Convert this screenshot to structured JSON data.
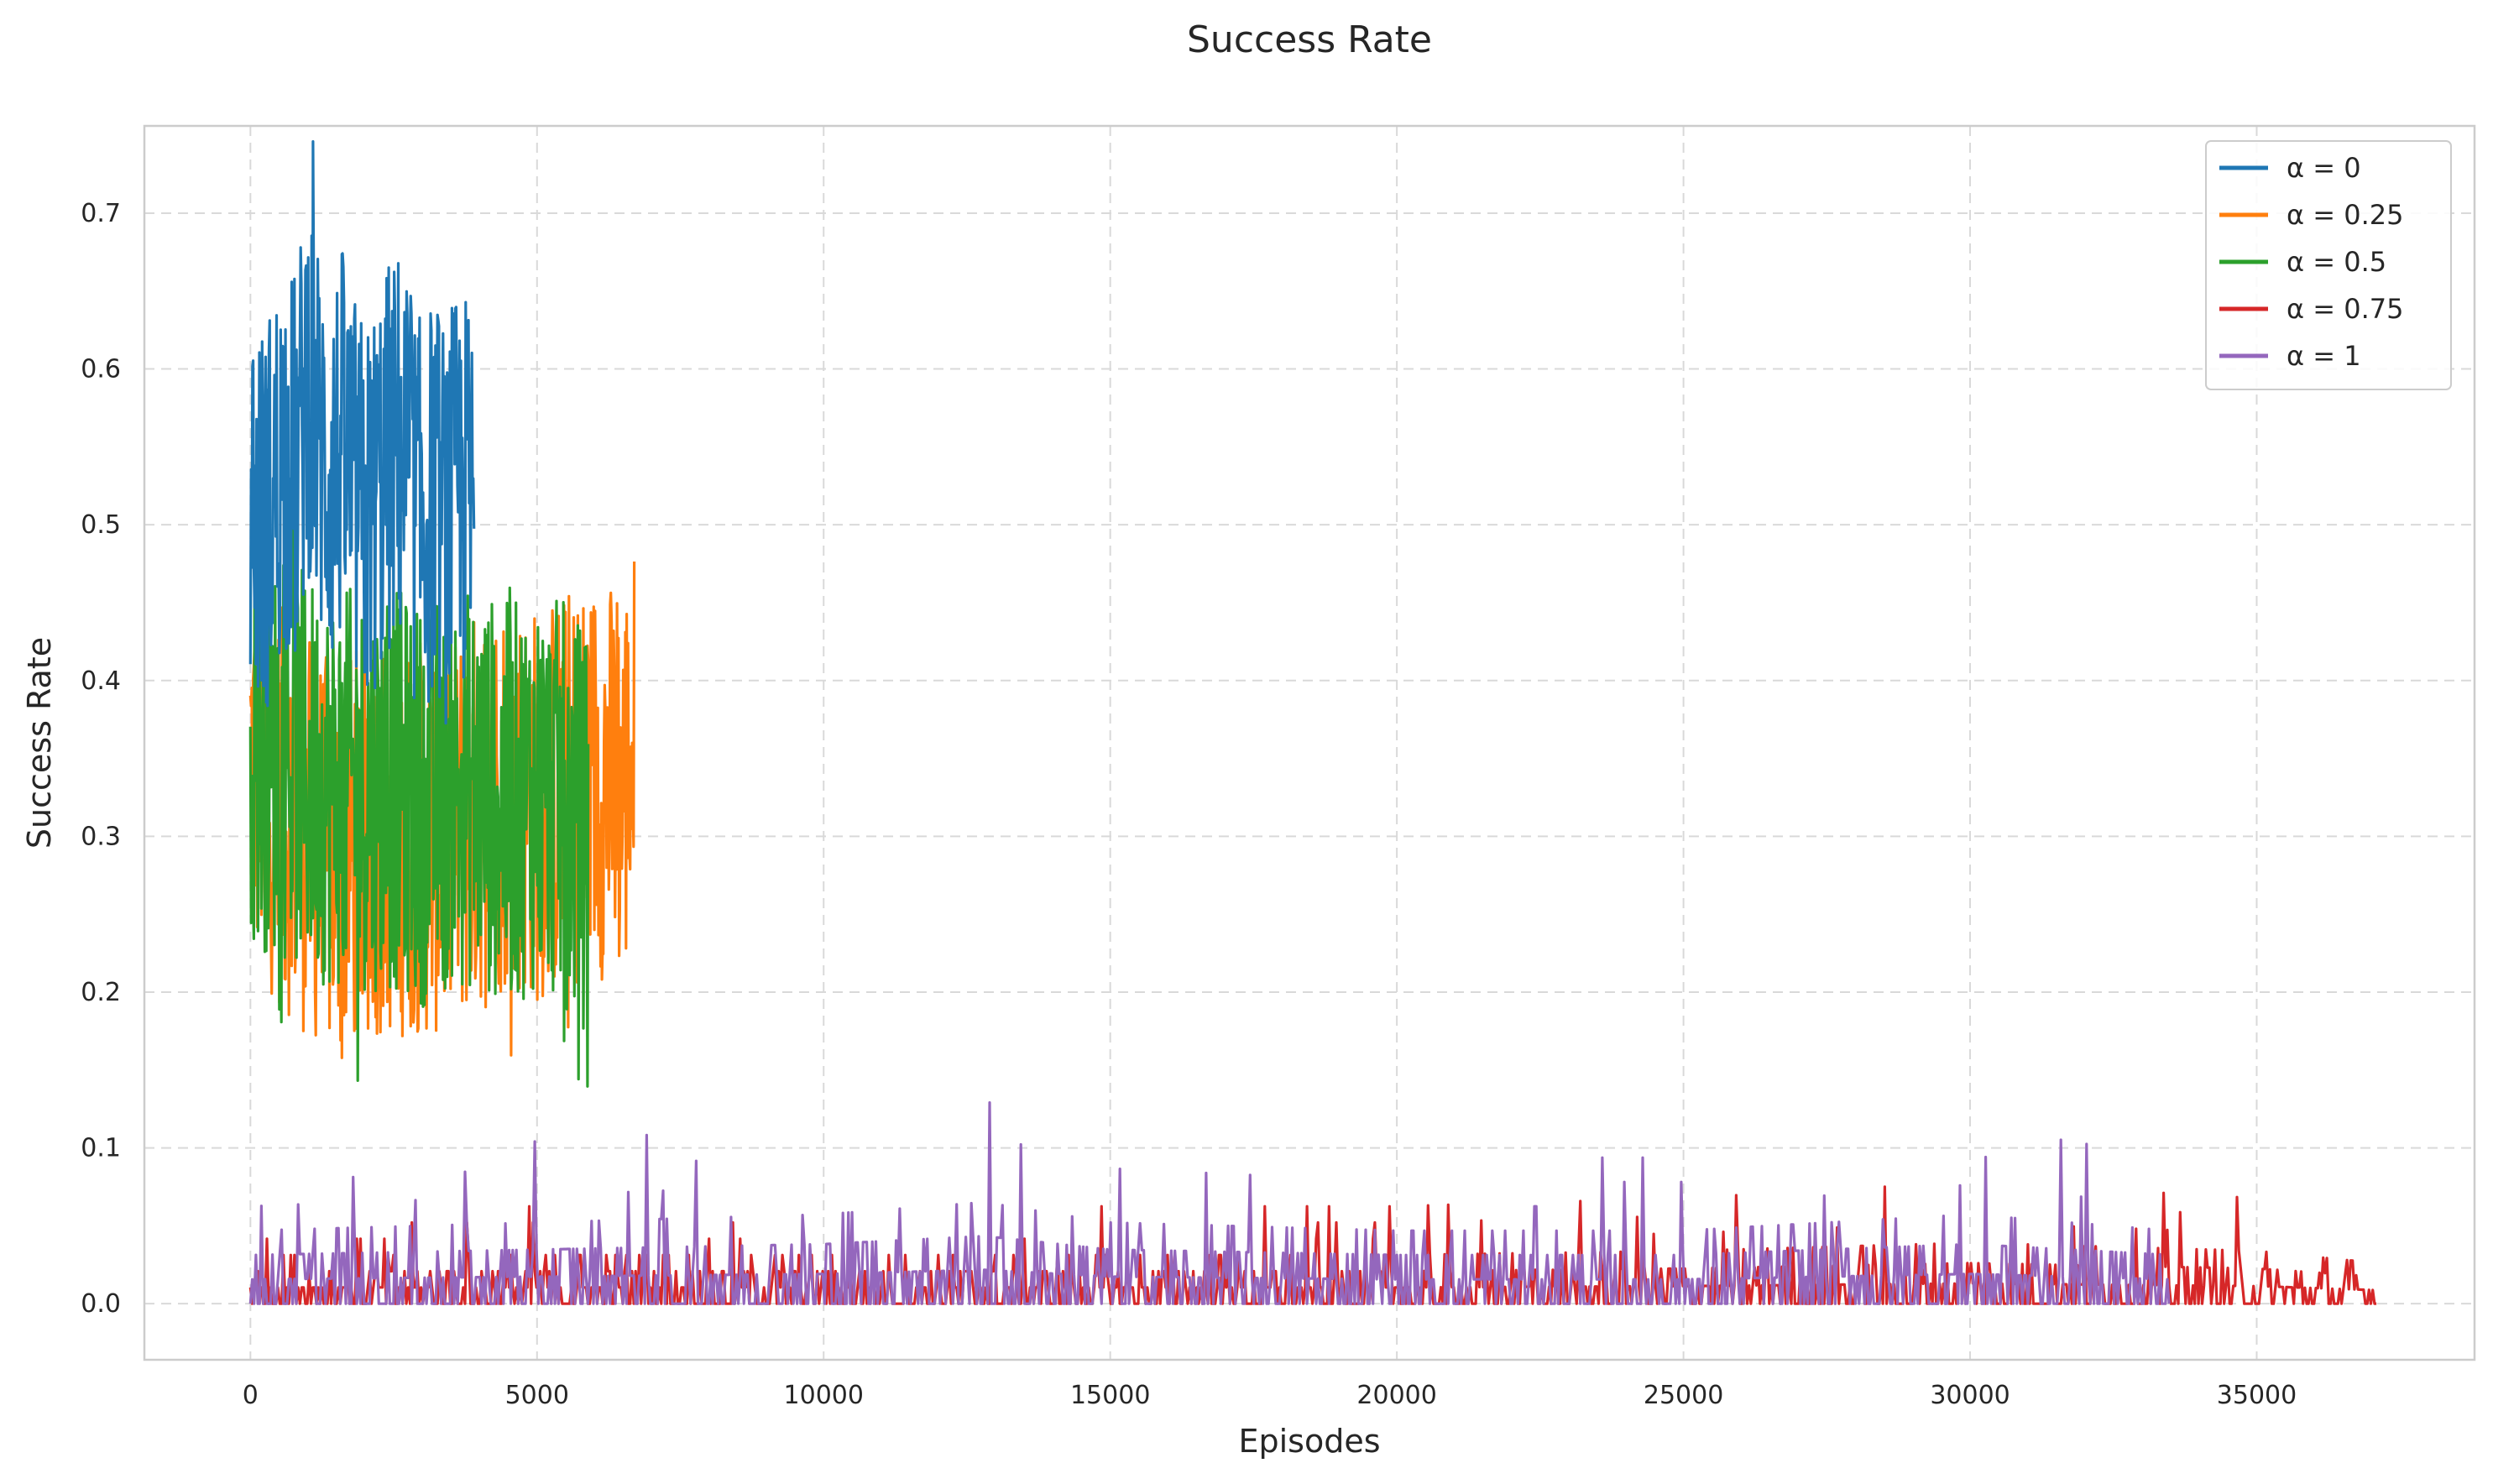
{
  "chart_data": {
    "type": "line",
    "title": "Success Rate",
    "xlabel": "Episodes",
    "ylabel": "Success Rate",
    "xlim": [
      -1850,
      38800
    ],
    "ylim": [
      -0.036,
      0.756
    ],
    "xticks": [
      0,
      5000,
      10000,
      15000,
      20000,
      25000,
      30000,
      35000
    ],
    "yticks": [
      0.0,
      0.1,
      0.2,
      0.3,
      0.4,
      0.5,
      0.6,
      0.7
    ],
    "grid": true,
    "legend_position": "top-right",
    "series": [
      {
        "name": "α = 0",
        "color": "#1f77b4",
        "noise": "high",
        "values": [
          [
            0,
            0.52
          ],
          [
            200,
            0.5
          ],
          [
            400,
            0.52
          ],
          [
            600,
            0.55
          ],
          [
            800,
            0.53
          ],
          [
            1000,
            0.6
          ],
          [
            1200,
            0.55
          ],
          [
            1400,
            0.53
          ],
          [
            1600,
            0.55
          ],
          [
            1800,
            0.52
          ],
          [
            2000,
            0.5
          ],
          [
            2200,
            0.52
          ],
          [
            2400,
            0.54
          ],
          [
            2600,
            0.55
          ],
          [
            2800,
            0.52
          ],
          [
            3000,
            0.5
          ],
          [
            3200,
            0.52
          ],
          [
            3400,
            0.5
          ],
          [
            3600,
            0.52
          ],
          [
            3800,
            0.52
          ],
          [
            3900,
            0.5
          ]
        ]
      },
      {
        "name": "α = 0.25",
        "color": "#ff7f0e",
        "noise": "high",
        "values": [
          [
            0,
            0.35
          ],
          [
            500,
            0.32
          ],
          [
            1000,
            0.3
          ],
          [
            1500,
            0.28
          ],
          [
            2000,
            0.3
          ],
          [
            2500,
            0.3
          ],
          [
            3000,
            0.3
          ],
          [
            3500,
            0.3
          ],
          [
            4000,
            0.32
          ],
          [
            4500,
            0.33
          ],
          [
            5000,
            0.32
          ],
          [
            5500,
            0.33
          ],
          [
            6000,
            0.34
          ],
          [
            6500,
            0.33
          ],
          [
            6700,
            0.36
          ]
        ]
      },
      {
        "name": "α = 0.5",
        "color": "#2ca02c",
        "noise": "high",
        "values": [
          [
            0,
            0.36
          ],
          [
            500,
            0.35
          ],
          [
            1000,
            0.34
          ],
          [
            1500,
            0.33
          ],
          [
            2000,
            0.33
          ],
          [
            2500,
            0.33
          ],
          [
            3000,
            0.32
          ],
          [
            3500,
            0.33
          ],
          [
            4000,
            0.33
          ],
          [
            4500,
            0.32
          ],
          [
            5000,
            0.33
          ],
          [
            5500,
            0.32
          ],
          [
            5900,
            0.3
          ]
        ]
      },
      {
        "name": "α = 0.75",
        "color": "#d62728",
        "noise": "low",
        "values": [
          [
            0,
            0.012
          ],
          [
            5000,
            0.012
          ],
          [
            10000,
            0.012
          ],
          [
            15000,
            0.012
          ],
          [
            20000,
            0.012
          ],
          [
            25000,
            0.013
          ],
          [
            30000,
            0.015
          ],
          [
            35000,
            0.013
          ],
          [
            37100,
            0.01
          ]
        ]
      },
      {
        "name": "α = 1",
        "color": "#9467bd",
        "noise": "low",
        "values": [
          [
            0,
            0.018
          ],
          [
            5000,
            0.02
          ],
          [
            10000,
            0.022
          ],
          [
            12800,
            0.025
          ],
          [
            15000,
            0.02
          ],
          [
            20000,
            0.018
          ],
          [
            25000,
            0.018
          ],
          [
            30000,
            0.022
          ],
          [
            33500,
            0.018
          ]
        ]
      }
    ]
  }
}
